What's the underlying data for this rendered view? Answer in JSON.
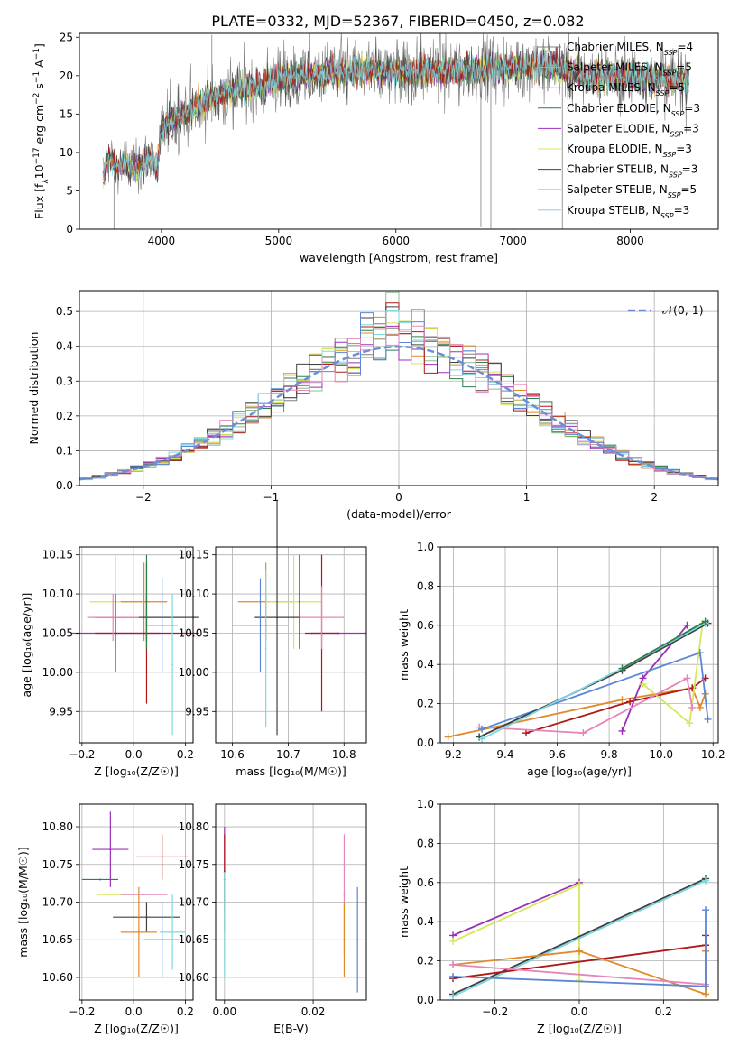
{
  "title": "PLATE=0332, MJD=52367, FIBERID=0450, z=0.082",
  "colors": {
    "Chabrier MILES": "#808080",
    "Salpeter MILES": "#8fbc8f",
    "Kroupa MILES": "#e08a2c",
    "Chabrier ELODIE": "#2e7d4f",
    "Salpeter ELODIE": "#9b30b8",
    "Kroupa ELODIE": "#d4e85a",
    "Chabrier STELIB": "#404040",
    "Salpeter STELIB": "#b01818",
    "Kroupa STELIB": "#7ed8e0",
    "blue": "#5b86d6",
    "pink": "#e585b8",
    "normal": "#6a8fd8"
  },
  "chart_data": [
    {
      "type": "line",
      "id": "spectrum",
      "xlabel": "wavelength [Angstrom, rest frame]",
      "ylabel_html": "Flux [f<tspan baseline-shift='sub' font-size='9'>λ</tspan>10<tspan baseline-shift='super' font-size='9'>−17</tspan> erg cm<tspan baseline-shift='super' font-size='9'>−2</tspan> s<tspan baseline-shift='super' font-size='9'>−1</tspan> A<tspan baseline-shift='super' font-size='9'>−1</tspan>]",
      "xlim": [
        3300,
        8750
      ],
      "ylim": [
        0,
        25.5
      ],
      "xticks": [
        4000,
        5000,
        6000,
        7000,
        8000
      ],
      "yticks": [
        0,
        5,
        10,
        15,
        20,
        25
      ],
      "continuum": [
        [
          3500,
          7
        ],
        [
          3550,
          9.5
        ],
        [
          3620,
          8
        ],
        [
          3700,
          8.5
        ],
        [
          3800,
          8
        ],
        [
          3900,
          9.5
        ],
        [
          3960,
          8
        ],
        [
          4000,
          13
        ],
        [
          4100,
          14.5
        ],
        [
          4250,
          15.5
        ],
        [
          4400,
          17
        ],
        [
          4600,
          18
        ],
        [
          4800,
          18.5
        ],
        [
          5000,
          19.5
        ],
        [
          5200,
          20
        ],
        [
          5500,
          20.5
        ],
        [
          5800,
          20.5
        ],
        [
          6000,
          20.5
        ],
        [
          6300,
          20.5
        ],
        [
          6600,
          21
        ],
        [
          7000,
          21
        ],
        [
          7300,
          21.5
        ],
        [
          7600,
          20
        ],
        [
          8000,
          20
        ],
        [
          8300,
          19.5
        ],
        [
          8500,
          19.5
        ]
      ],
      "legend": [
        {
          "label": "Chabrier MILES, N",
          "n": "4"
        },
        {
          "label": "Salpeter MILES, N",
          "n": "5"
        },
        {
          "label": "Kroupa MILES, N",
          "n": "5"
        },
        {
          "label": "Chabrier ELODIE, N",
          "n": "3"
        },
        {
          "label": "Salpeter ELODIE, N",
          "n": "3"
        },
        {
          "label": "Kroupa ELODIE, N",
          "n": "3"
        },
        {
          "label": "Chabrier STELIB, N",
          "n": "3"
        },
        {
          "label": "Salpeter STELIB, N",
          "n": "5"
        },
        {
          "label": "Kroupa STELIB, N",
          "n": "3"
        }
      ],
      "legend_sub": "SSP",
      "legend_colors": [
        "#808080",
        "#8fbc8f",
        "#e08a2c",
        "#2e7d4f",
        "#9b30b8",
        "#d4e85a",
        "#404040",
        "#b01818",
        "#7ed8e0"
      ]
    },
    {
      "type": "histogram",
      "id": "residuals",
      "xlabel": "(data-model)/error",
      "ylabel": "Normed distribution",
      "xlim": [
        -2.5,
        2.5
      ],
      "ylim": [
        0,
        0.56
      ],
      "xticks": [
        -2,
        -1,
        0,
        1,
        2
      ],
      "yticks": [
        0.0,
        0.1,
        0.2,
        0.3,
        0.4,
        0.5
      ],
      "bin_width": 0.1,
      "legend_label": "𝒩(0, 1)",
      "series_colors": [
        "#808080",
        "#8fbc8f",
        "#e08a2c",
        "#2e7d4f",
        "#9b30b8",
        "#d4e85a",
        "#404040",
        "#b01818",
        "#7ed8e0",
        "#5b86d6",
        "#e585b8"
      ]
    },
    {
      "type": "scatter",
      "id": "age-vs-Z",
      "xlabel": "Z [log₁₀(Z/Z☉)]",
      "ylabel": "age [log₁₀(age/yr)]",
      "xlim": [
        -0.21,
        0.23
      ],
      "ylim": [
        9.91,
        10.16
      ],
      "xticks": [
        -0.2,
        0.0,
        0.2
      ],
      "yticks": [
        9.95,
        10.0,
        10.05,
        10.1,
        10.15
      ],
      "points": [
        {
          "x": -0.07,
          "y": 10.09,
          "xerr": 0.1,
          "yerr": 0.06,
          "c": "#d4e85a"
        },
        {
          "x": 0.04,
          "y": 10.09,
          "xerr": 0.09,
          "yerr": 0.05,
          "c": "#e08a2c"
        },
        {
          "x": -0.07,
          "y": 10.05,
          "xerr": 0.17,
          "yerr": 0.05,
          "c": "#9b30b8"
        },
        {
          "x": 0.05,
          "y": 10.05,
          "xerr": 0.2,
          "yerr": 0.09,
          "c": "#b01818"
        },
        {
          "x": 0.05,
          "y": 10.07,
          "xerr": 0.2,
          "yerr": 0.03,
          "c": "#404040"
        },
        {
          "x": 0.15,
          "y": 10.01,
          "xerr": 0.0,
          "yerr": 0.09,
          "c": "#7ed8e0"
        },
        {
          "x": 0.11,
          "y": 10.06,
          "xerr": 0.06,
          "yerr": 0.06,
          "c": "#5b86d6"
        },
        {
          "x": -0.08,
          "y": 10.07,
          "xerr": 0.1,
          "yerr": 0.03,
          "c": "#e585b8"
        },
        {
          "x": 0.05,
          "y": 10.09,
          "xerr": 0.0,
          "yerr": 0.06,
          "c": "#2e7d4f"
        }
      ]
    },
    {
      "type": "scatter",
      "id": "age-vs-mass",
      "xlabel": "mass [log₁₀(M/M☉)]",
      "ylabel": "",
      "xlim": [
        10.57,
        10.84
      ],
      "ylim": [
        9.91,
        10.16
      ],
      "xticks": [
        10.6,
        10.7,
        10.8
      ],
      "yticks": [
        9.95,
        10.0,
        10.05,
        10.1,
        10.15
      ],
      "points": [
        {
          "x": 10.66,
          "y": 10.09,
          "xerr": 0.05,
          "yerr": 0.05,
          "c": "#e08a2c"
        },
        {
          "x": 10.71,
          "y": 10.09,
          "xerr": 0.05,
          "yerr": 0.06,
          "c": "#d4e85a"
        },
        {
          "x": 10.79,
          "y": 10.05,
          "xerr": 0.05,
          "yerr": 0.0,
          "c": "#9b30b8"
        },
        {
          "x": 10.76,
          "y": 10.05,
          "xerr": 0.03,
          "yerr": 0.1,
          "c": "#b01818"
        },
        {
          "x": 10.68,
          "y": 10.07,
          "xerr": 0.04,
          "yerr": 0.15,
          "c": "#404040"
        },
        {
          "x": 10.66,
          "y": 10.03,
          "xerr": 0.0,
          "yerr": 0.1,
          "c": "#7ed8e0"
        },
        {
          "x": 10.65,
          "y": 10.06,
          "xerr": 0.05,
          "yerr": 0.06,
          "c": "#5b86d6"
        },
        {
          "x": 10.76,
          "y": 10.07,
          "xerr": 0.04,
          "yerr": 0.04,
          "c": "#e585b8"
        },
        {
          "x": 10.72,
          "y": 10.09,
          "xerr": 0.0,
          "yerr": 0.06,
          "c": "#2e7d4f"
        }
      ]
    },
    {
      "type": "line",
      "id": "mass-weight-vs-age",
      "xlabel": "age [log₁₀(age/yr)]",
      "ylabel": "mass weight",
      "xlim": [
        9.15,
        10.22
      ],
      "ylim": [
        0,
        1.0
      ],
      "xticks": [
        9.2,
        9.4,
        9.6,
        9.8,
        10.0,
        10.2
      ],
      "yticks": [
        0.0,
        0.2,
        0.4,
        0.6,
        0.8,
        1.0
      ],
      "series": [
        {
          "c": "#e08a2c",
          "pts": [
            [
              9.18,
              0.03
            ],
            [
              9.85,
              0.22
            ],
            [
              10.12,
              0.28
            ],
            [
              10.15,
              0.18
            ],
            [
              10.17,
              0.25
            ]
          ]
        },
        {
          "c": "#b01818",
          "pts": [
            [
              9.48,
              0.05
            ],
            [
              9.88,
              0.21
            ],
            [
              10.12,
              0.28
            ],
            [
              10.17,
              0.33
            ]
          ]
        },
        {
          "c": "#9b30b8",
          "pts": [
            [
              9.85,
              0.06
            ],
            [
              9.93,
              0.33
            ],
            [
              10.1,
              0.6
            ]
          ]
        },
        {
          "c": "#d4e85a",
          "pts": [
            [
              9.93,
              0.3
            ],
            [
              10.11,
              0.1
            ],
            [
              10.16,
              0.61
            ]
          ]
        },
        {
          "c": "#e585b8",
          "pts": [
            [
              9.3,
              0.08
            ],
            [
              9.7,
              0.05
            ],
            [
              10.1,
              0.33
            ],
            [
              10.12,
              0.18
            ]
          ]
        },
        {
          "c": "#5b86d6",
          "pts": [
            [
              9.31,
              0.07
            ],
            [
              10.15,
              0.46
            ],
            [
              10.18,
              0.12
            ]
          ]
        },
        {
          "c": "#404040",
          "pts": [
            [
              9.3,
              0.03
            ],
            [
              9.85,
              0.37
            ],
            [
              10.18,
              0.61
            ]
          ]
        },
        {
          "c": "#7ed8e0",
          "pts": [
            [
              9.31,
              0.02
            ],
            [
              9.85,
              0.38
            ],
            [
              10.17,
              0.61
            ]
          ]
        },
        {
          "c": "#2e7d4f",
          "pts": [
            [
              9.85,
              0.38
            ],
            [
              10.17,
              0.62
            ]
          ]
        }
      ]
    },
    {
      "type": "scatter",
      "id": "mass-vs-Z",
      "xlabel": "Z [log₁₀(Z/Z☉)]",
      "ylabel": "mass [log₁₀(M/M☉)]",
      "xlim": [
        -0.21,
        0.23
      ],
      "ylim": [
        10.57,
        10.83
      ],
      "xticks": [
        -0.2,
        0.0,
        0.2
      ],
      "yticks": [
        10.6,
        10.65,
        10.7,
        10.75,
        10.8
      ],
      "points": [
        {
          "x": -0.09,
          "y": 10.77,
          "xerr": 0.07,
          "yerr": 0.05,
          "c": "#9b30b8"
        },
        {
          "x": 0.11,
          "y": 10.76,
          "xerr": 0.1,
          "yerr": 0.03,
          "c": "#b01818"
        },
        {
          "x": -0.13,
          "y": 10.73,
          "xerr": 0.07,
          "yerr": 0.0,
          "c": "#2e7d4f"
        },
        {
          "x": -0.07,
          "y": 10.71,
          "xerr": 0.07,
          "yerr": 0.0,
          "c": "#d4e85a"
        },
        {
          "x": 0.04,
          "y": 10.71,
          "xerr": 0.09,
          "yerr": 0.0,
          "c": "#e585b8"
        },
        {
          "x": 0.05,
          "y": 10.68,
          "xerr": 0.13,
          "yerr": 0.02,
          "c": "#404040"
        },
        {
          "x": 0.02,
          "y": 10.66,
          "xerr": 0.07,
          "yerr": 0.06,
          "c": "#e08a2c"
        },
        {
          "x": 0.11,
          "y": 10.65,
          "xerr": 0.07,
          "yerr": 0.05,
          "c": "#5b86d6"
        },
        {
          "x": 0.15,
          "y": 10.66,
          "xerr": 0.05,
          "yerr": 0.05,
          "c": "#7ed8e0"
        }
      ]
    },
    {
      "type": "scatter",
      "id": "mass-vs-ebv",
      "xlabel": "E(B-V)",
      "ylabel": "",
      "xlim": [
        -0.002,
        0.032
      ],
      "ylim": [
        10.57,
        10.83
      ],
      "xticks": [
        0.0,
        0.02
      ],
      "yticks": [
        10.6,
        10.65,
        10.7,
        10.75,
        10.8
      ],
      "points": [
        {
          "x": 0.0,
          "y": 10.73,
          "xerr": 0.0,
          "yerr": 0.07,
          "c": "#9b30b8"
        },
        {
          "x": 0.0,
          "y": 10.74,
          "xerr": 0.0,
          "yerr": 0.05,
          "c": "#b01818"
        },
        {
          "x": 0.0,
          "y": 10.68,
          "xerr": 0.0,
          "yerr": 0.06,
          "c": "#d4e85a"
        },
        {
          "x": 0.0,
          "y": 10.67,
          "xerr": 0.0,
          "yerr": 0.07,
          "c": "#7ed8e0"
        },
        {
          "x": 0.027,
          "y": 10.71,
          "xerr": 0.0,
          "yerr": 0.08,
          "c": "#e585b8"
        },
        {
          "x": 0.027,
          "y": 10.65,
          "xerr": 0.0,
          "yerr": 0.05,
          "c": "#e08a2c"
        },
        {
          "x": 0.03,
          "y": 10.65,
          "xerr": 0.0,
          "yerr": 0.07,
          "c": "#5b86d6"
        }
      ]
    },
    {
      "type": "line",
      "id": "mass-weight-vs-Z",
      "xlabel": "Z [log₁₀(Z/Z☉)]",
      "ylabel": "mass weight",
      "xlim": [
        -0.33,
        0.33
      ],
      "ylim": [
        0,
        1.0
      ],
      "xticks": [
        -0.2,
        0.0,
        0.2
      ],
      "yticks": [
        0.0,
        0.2,
        0.4,
        0.6,
        0.8,
        1.0
      ],
      "series": [
        {
          "c": "#9b30b8",
          "pts": [
            [
              -0.3,
              0.33
            ],
            [
              0.0,
              0.6
            ]
          ]
        },
        {
          "c": "#d4e85a",
          "pts": [
            [
              -0.3,
              0.3
            ],
            [
              0.0,
              0.59
            ],
            [
              0.0,
              0.1
            ]
          ]
        },
        {
          "c": "#404040",
          "pts": [
            [
              -0.3,
              0.03
            ],
            [
              0.3,
              0.62
            ]
          ]
        },
        {
          "c": "#7ed8e0",
          "pts": [
            [
              -0.3,
              0.02
            ],
            [
              0.3,
              0.61
            ]
          ]
        },
        {
          "c": "#e08a2c",
          "pts": [
            [
              -0.3,
              0.18
            ],
            [
              0.0,
              0.25
            ],
            [
              0.3,
              0.03
            ],
            [
              0.3,
              0.25
            ]
          ]
        },
        {
          "c": "#b01818",
          "pts": [
            [
              -0.3,
              0.11
            ],
            [
              0.3,
              0.28
            ],
            [
              0.3,
              0.33
            ]
          ]
        },
        {
          "c": "#e585b8",
          "pts": [
            [
              -0.3,
              0.18
            ],
            [
              0.3,
              0.08
            ]
          ]
        },
        {
          "c": "#5b86d6",
          "pts": [
            [
              -0.3,
              0.12
            ],
            [
              0.3,
              0.07
            ],
            [
              0.3,
              0.46
            ]
          ]
        }
      ]
    }
  ]
}
